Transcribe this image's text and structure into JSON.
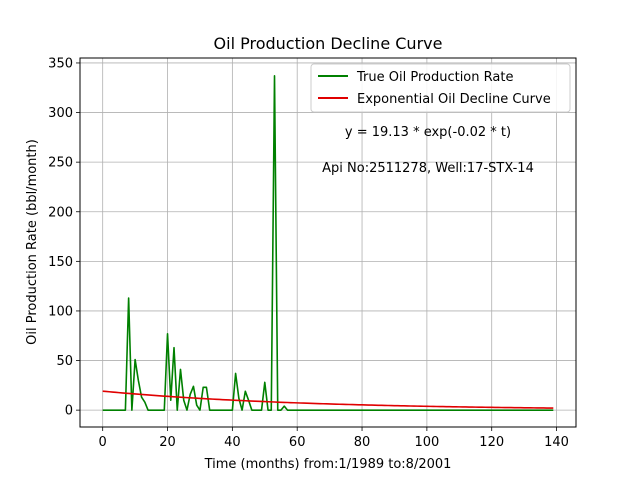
{
  "chart_data": {
    "type": "line",
    "title": "Oil Production Decline Curve",
    "xlabel": "Time (months) from:1/1989 to:8/2001",
    "ylabel": "Oil Production Rate (bbl/month)",
    "xlim": [
      -7,
      146
    ],
    "ylim": [
      -17,
      355
    ],
    "xticks": [
      0,
      20,
      40,
      60,
      80,
      100,
      120,
      140
    ],
    "yticks": [
      0,
      50,
      100,
      150,
      200,
      250,
      300,
      350
    ],
    "grid": true,
    "legend_position": "top-right",
    "annotations": [
      {
        "text": "y = 19.13 * exp(-0.02 * t)"
      },
      {
        "text": "Api No:2511278, Well:17-STX-14"
      }
    ],
    "series": [
      {
        "name": "True Oil Production Rate",
        "color": "#008000",
        "x": [
          0,
          1,
          2,
          3,
          4,
          5,
          6,
          7,
          8,
          9,
          10,
          11,
          12,
          13,
          14,
          15,
          16,
          17,
          18,
          19,
          20,
          21,
          22,
          23,
          24,
          25,
          26,
          27,
          28,
          29,
          30,
          31,
          32,
          33,
          34,
          35,
          36,
          37,
          38,
          39,
          40,
          41,
          42,
          43,
          44,
          45,
          46,
          47,
          48,
          49,
          50,
          51,
          52,
          53,
          54,
          55,
          56,
          57,
          58,
          59,
          60,
          70,
          80,
          90,
          100,
          110,
          120,
          130,
          139
        ],
        "y": [
          0,
          0,
          0,
          0,
          0,
          0,
          0,
          0,
          113,
          0,
          51,
          30,
          13,
          8,
          0,
          0,
          0,
          0,
          0,
          0,
          77,
          10,
          63,
          0,
          41,
          10,
          0,
          16,
          24,
          5,
          0,
          23,
          23,
          0,
          0,
          0,
          0,
          0,
          0,
          0,
          0,
          37,
          12,
          0,
          19,
          10,
          0,
          0,
          0,
          0,
          28,
          0,
          0,
          337,
          0,
          0,
          4,
          0,
          0,
          0,
          0,
          0,
          0,
          0,
          0,
          0,
          0,
          0,
          0
        ]
      },
      {
        "name": "Exponential Oil Decline Curve",
        "color": "#e00000",
        "a": 19.13,
        "b": -0.016,
        "x_range": [
          0,
          139
        ]
      }
    ]
  }
}
